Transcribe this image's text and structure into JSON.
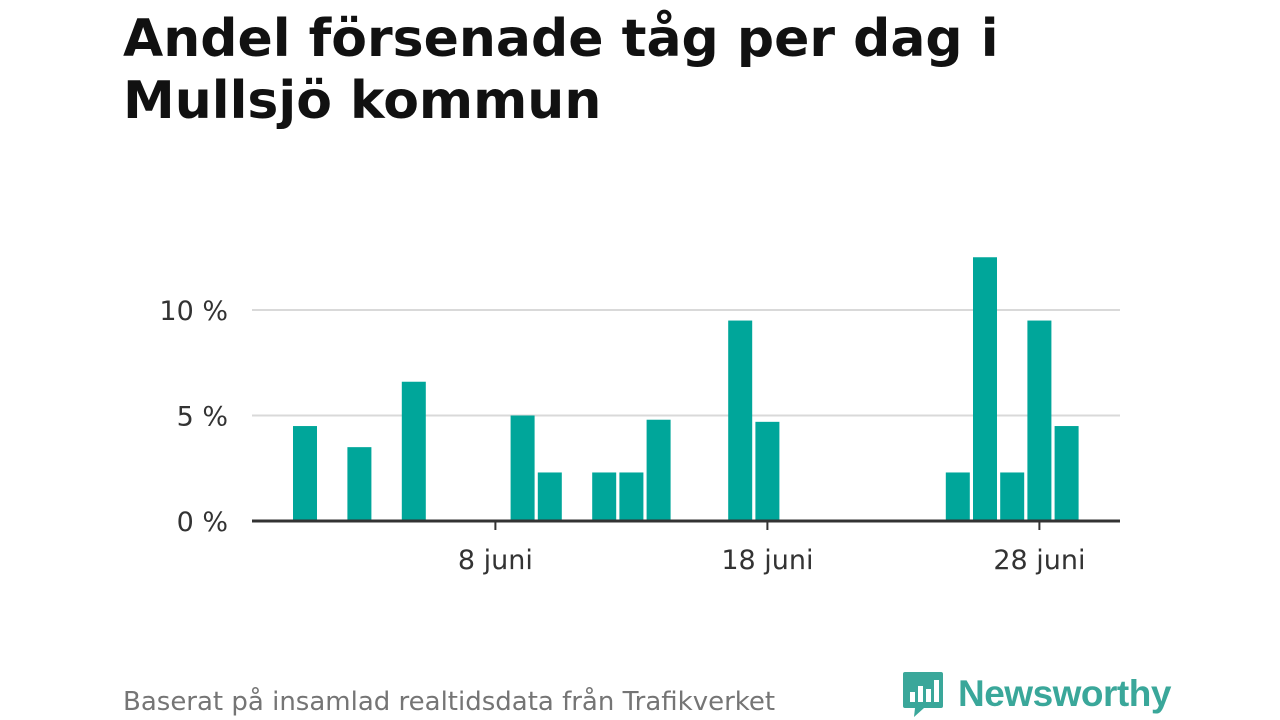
{
  "title": "Andel försenade tåg per dag i Mullsjö kommun",
  "footer": {
    "source": "Baserat på insamlad realtidsdata från Trafikverket",
    "brand": "Newsworthy"
  },
  "colors": {
    "bar": "#00a69a",
    "brand": "#3aa79a"
  },
  "chart_data": {
    "type": "bar",
    "title": "Andel försenade tåg per dag i Mullsjö kommun",
    "xlabel": "",
    "ylabel": "",
    "x_unit": "day of June",
    "categories": [
      1,
      2,
      3,
      4,
      5,
      6,
      7,
      8,
      9,
      10,
      11,
      12,
      13,
      14,
      15,
      16,
      17,
      18,
      19,
      20,
      21,
      22,
      23,
      24,
      25,
      26,
      27,
      28,
      29,
      30
    ],
    "values": [
      4.5,
      0,
      3.5,
      0,
      6.6,
      0,
      0,
      0,
      5.0,
      2.3,
      0,
      2.3,
      2.3,
      4.8,
      0,
      0,
      9.5,
      4.7,
      0,
      0,
      0,
      0,
      0,
      0,
      2.3,
      12.5,
      2.3,
      9.5,
      4.5,
      0
    ],
    "ylim": [
      0,
      13
    ],
    "y_ticks": [
      0,
      5,
      10
    ],
    "y_tick_labels": [
      "0 %",
      "5 %",
      "10 %"
    ],
    "x_ticks": [
      8,
      18,
      28
    ],
    "x_tick_labels": [
      "8 juni",
      "18 juni",
      "28 juni"
    ],
    "grid": true,
    "legend": "none"
  }
}
